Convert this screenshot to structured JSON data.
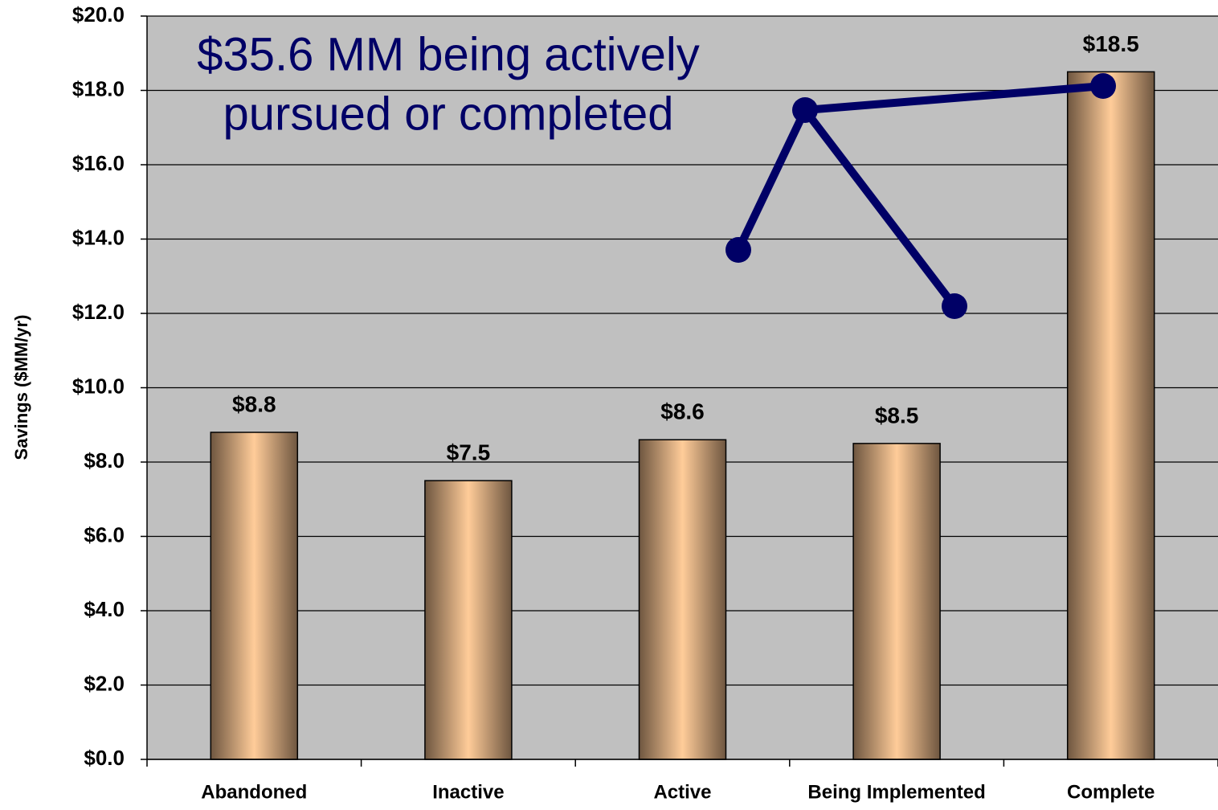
{
  "chart_data": {
    "type": "bar",
    "y_label": "Savings ($MM/yr)",
    "annotation": [
      "$35.6 MM being actively",
      "pursued or completed"
    ],
    "categories": [
      "Abandoned",
      "Inactive",
      "Active",
      "Being Implemented",
      "Complete"
    ],
    "values": [
      8.8,
      7.5,
      8.6,
      8.5,
      18.5
    ],
    "value_labels": [
      "$8.8",
      "$7.5",
      "$8.6",
      "$8.5",
      "$18.5"
    ],
    "color": "#ffcc99",
    "ylim": [
      0,
      20
    ],
    "yticks": [
      {
        "value": 0,
        "label": "$0.0"
      },
      {
        "value": 2,
        "label": "$2.0"
      },
      {
        "value": 4,
        "label": "$4.0"
      },
      {
        "value": 6,
        "label": "$6.0"
      },
      {
        "value": 8,
        "label": "$8.0"
      },
      {
        "value": 10,
        "label": "$10.0"
      },
      {
        "value": 12,
        "label": "$12.0"
      },
      {
        "value": 14,
        "label": "$14.0"
      },
      {
        "value": 16,
        "label": "$16.0"
      },
      {
        "value": 18,
        "label": "$18.0"
      },
      {
        "value": 20,
        "label": "$20.0"
      }
    ],
    "grid": true
  }
}
